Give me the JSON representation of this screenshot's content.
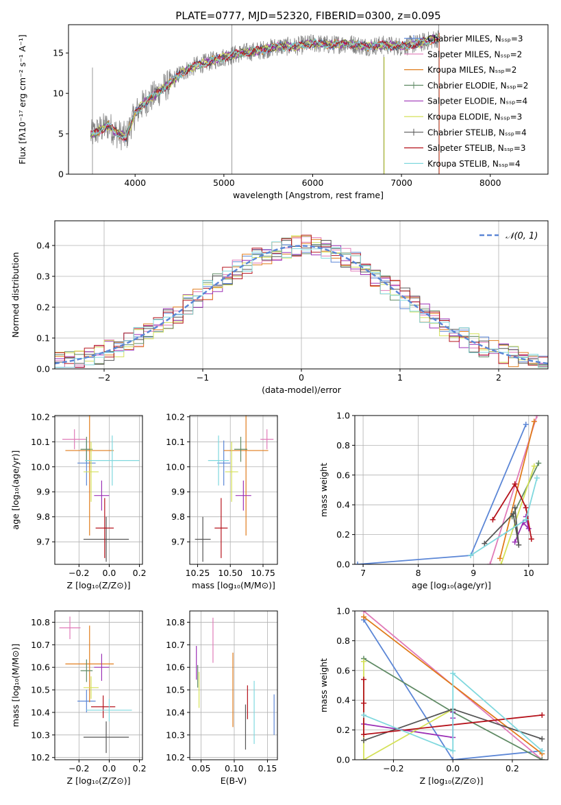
{
  "chart_data": [
    {
      "id": "spectrum",
      "type": "line",
      "title": "PLATE=0777, MJD=52320, FIBERID=0300, z=0.095",
      "xlabel": "wavelength [Angstrom, rest frame]",
      "ylabel": "Flux [fλ10⁻¹⁷ erg cm⁻² s⁻¹ A⁻¹]",
      "xlim": [
        3250,
        8650
      ],
      "ylim": [
        0,
        18.5
      ],
      "xticks": [
        4000,
        5000,
        6000,
        7000,
        8000
      ],
      "yticks": [
        0,
        5,
        10,
        15
      ],
      "grid": false,
      "legend_placement": "right",
      "data_series": {
        "name": "data",
        "color": "#808080"
      },
      "model_envelope": {
        "x": [
          3500,
          3600,
          3700,
          3800,
          3900,
          4000,
          4100,
          4200,
          4300,
          4400,
          4500,
          4600,
          4700,
          4800,
          5000,
          5200,
          5400,
          5600,
          5800,
          6000,
          6200,
          6400,
          6600,
          6800,
          7000,
          7200,
          7400
        ],
        "y": [
          4.8,
          5.5,
          6.0,
          5.0,
          4.6,
          7.5,
          8.8,
          9.6,
          10.5,
          11.3,
          12.4,
          13.0,
          13.5,
          13.8,
          14.5,
          15.0,
          15.3,
          15.8,
          15.8,
          16.2,
          16.0,
          16.2,
          15.8,
          16.0,
          15.8,
          16.2,
          16.8
        ]
      },
      "series": [
        {
          "name": "Chabrier MILES, N_SSP=3",
          "color": "#5b86d6"
        },
        {
          "name": "Salpeter MILES, N_SSP=2",
          "color": "#e07ab8"
        },
        {
          "name": "Kroupa MILES, N_SSP=2",
          "color": "#e07b1a"
        },
        {
          "name": "Chabrier ELODIE, N_SSP=2",
          "color": "#5f8a64"
        },
        {
          "name": "Salpeter ELODIE, N_SSP=4",
          "color": "#9b2fb5"
        },
        {
          "name": "Kroupa ELODIE, N_SSP=3",
          "color": "#d4e157"
        },
        {
          "name": "Chabrier STELIB, N_SSP=4",
          "color": "#555555"
        },
        {
          "name": "Salpeter STELIB, N_SSP=3",
          "color": "#b5121b"
        },
        {
          "name": "Kroupa STELIB, N_SSP=4",
          "color": "#7fd8de"
        }
      ]
    },
    {
      "id": "residuals",
      "type": "line",
      "xlabel": "(data-model)/error",
      "ylabel": "Normed distribution",
      "xlim": [
        -2.5,
        2.5
      ],
      "ylim": [
        0,
        0.48
      ],
      "xticks": [
        -2,
        -1,
        0,
        1,
        2
      ],
      "yticks": [
        0.0,
        0.1,
        0.2,
        0.3,
        0.4
      ],
      "grid": true,
      "legend_placement": "top-right",
      "reference_curve": {
        "name": "𝒩(0, 1)",
        "mean": 0,
        "sigma": 1,
        "color": "#5b86d6"
      }
    },
    {
      "id": "age_vs_Z",
      "type": "scatter",
      "xlabel": "Z [log₁₀(Z/Z⊙)]",
      "ylabel": "age  [log₁₀(age/yr)]",
      "xlim": [
        -0.36,
        0.22
      ],
      "ylim": [
        9.61,
        10.205
      ],
      "xticks": [
        -0.2,
        0.0,
        0.2
      ],
      "yticks": [
        9.7,
        9.8,
        9.9,
        10.0,
        10.1,
        10.2
      ],
      "grid": true,
      "points": [
        {
          "x": -0.15,
          "xerr": 0.06,
          "y": 10.015,
          "yerr": 0.09,
          "color": "#5b86d6"
        },
        {
          "x": -0.23,
          "xerr": 0.08,
          "y": 10.11,
          "yerr": 0.04,
          "color": "#e07ab8"
        },
        {
          "x": -0.13,
          "xerr": 0.16,
          "y": 10.065,
          "yerr": 0.34,
          "color": "#e07b1a"
        },
        {
          "x": -0.15,
          "xerr": 0.04,
          "y": 10.07,
          "yerr": 0.05,
          "color": "#5f8a64"
        },
        {
          "x": -0.05,
          "xerr": 0.05,
          "y": 9.885,
          "yerr": 0.06,
          "color": "#9b2fb5"
        },
        {
          "x": -0.12,
          "xerr": 0.05,
          "y": 9.98,
          "yerr": 0.12,
          "color": "#d4e157"
        },
        {
          "x": -0.02,
          "xerr": 0.15,
          "y": 9.71,
          "yerr": 0.09,
          "color": "#555555"
        },
        {
          "x": -0.03,
          "xerr": 0.06,
          "y": 9.755,
          "yerr": 0.12,
          "color": "#b5121b"
        },
        {
          "x": 0.02,
          "xerr": 0.18,
          "y": 10.025,
          "yerr": 0.1,
          "color": "#7fd8de"
        }
      ]
    },
    {
      "id": "age_vs_mass",
      "type": "scatter",
      "xlabel": "mass [log₁₀(M/M⊙)]",
      "xlim": [
        10.19,
        10.86
      ],
      "ylim": [
        9.61,
        10.205
      ],
      "xticks": [
        10.25,
        10.5,
        10.75
      ],
      "yticks": [
        9.7,
        9.8,
        9.9,
        10.0,
        10.1,
        10.2
      ],
      "grid": true,
      "points": [
        {
          "x": 10.45,
          "xerr": 0.05,
          "y": 10.015,
          "yerr": 0.09,
          "color": "#5b86d6"
        },
        {
          "x": 10.78,
          "xerr": 0.05,
          "y": 10.11,
          "yerr": 0.04,
          "color": "#e07ab8"
        },
        {
          "x": 10.62,
          "xerr": 0.17,
          "y": 10.065,
          "yerr": 0.34,
          "color": "#e07b1a"
        },
        {
          "x": 10.58,
          "xerr": 0.05,
          "y": 10.07,
          "yerr": 0.05,
          "color": "#5f8a64"
        },
        {
          "x": 10.6,
          "xerr": 0.06,
          "y": 9.885,
          "yerr": 0.06,
          "color": "#9b2fb5"
        },
        {
          "x": 10.51,
          "xerr": 0.05,
          "y": 9.98,
          "yerr": 0.12,
          "color": "#d4e157"
        },
        {
          "x": 10.29,
          "xerr": 0.06,
          "y": 9.71,
          "yerr": 0.09,
          "color": "#555555"
        },
        {
          "x": 10.43,
          "xerr": 0.05,
          "y": 9.755,
          "yerr": 0.12,
          "color": "#b5121b"
        },
        {
          "x": 10.41,
          "xerr": 0.08,
          "y": 10.025,
          "yerr": 0.1,
          "color": "#7fd8de"
        }
      ]
    },
    {
      "id": "weight_vs_age",
      "type": "line",
      "xlabel": "age  [log₁₀(age/yr)]",
      "ylabel": "mass weight",
      "xlim": [
        6.85,
        10.35
      ],
      "ylim": [
        0,
        1.0
      ],
      "xticks": [
        7,
        8,
        9,
        10
      ],
      "yticks": [
        0.0,
        0.2,
        0.4,
        0.6,
        0.8,
        1.0
      ],
      "grid": true,
      "series": [
        {
          "color": "#5b86d6",
          "x": [
            6.9,
            8.95,
            9.95
          ],
          "y": [
            0.0,
            0.06,
            0.94
          ]
        },
        {
          "color": "#e07ab8",
          "x": [
            9.3,
            10.15
          ],
          "y": [
            0.0,
            1.0
          ]
        },
        {
          "color": "#e07b1a",
          "x": [
            9.48,
            10.1
          ],
          "y": [
            0.04,
            0.96
          ]
        },
        {
          "color": "#5f8a64",
          "x": [
            9.7,
            10.18
          ],
          "y": [
            0.32,
            0.68
          ]
        },
        {
          "color": "#9b2fb5",
          "x": [
            9.95,
            10.0,
            9.9,
            9.75
          ],
          "y": [
            0.32,
            0.24,
            0.28,
            0.15
          ]
        },
        {
          "color": "#d4e157",
          "x": [
            9.5,
            10.1
          ],
          "y": [
            0.0,
            0.66
          ]
        },
        {
          "color": "#555555",
          "x": [
            9.2,
            9.72,
            9.82,
            9.75
          ],
          "y": [
            0.14,
            0.34,
            0.13,
            0.38
          ]
        },
        {
          "color": "#b5121b",
          "x": [
            9.35,
            9.75,
            9.95,
            10.05
          ],
          "y": [
            0.3,
            0.54,
            0.38,
            0.17
          ]
        },
        {
          "color": "#7fd8de",
          "x": [
            8.95,
            9.95,
            10.15
          ],
          "y": [
            0.06,
            0.3,
            0.58
          ]
        }
      ]
    },
    {
      "id": "mass_vs_Z",
      "type": "scatter",
      "xlabel": "Z [log₁₀(Z/Z⊙)]",
      "ylabel": "mass [log₁₀(M/M⊙)]",
      "xlim": [
        -0.36,
        0.22
      ],
      "ylim": [
        10.19,
        10.85
      ],
      "xticks": [
        -0.2,
        0.0,
        0.2
      ],
      "yticks": [
        10.2,
        10.3,
        10.4,
        10.5,
        10.6,
        10.7,
        10.8
      ],
      "grid": true,
      "points": [
        {
          "x": -0.15,
          "xerr": 0.06,
          "y": 10.45,
          "yerr": 0.05,
          "color": "#5b86d6"
        },
        {
          "x": -0.26,
          "xerr": 0.07,
          "y": 10.775,
          "yerr": 0.05,
          "color": "#e07ab8"
        },
        {
          "x": -0.13,
          "xerr": 0.16,
          "y": 10.615,
          "yerr": 0.17,
          "color": "#e07b1a"
        },
        {
          "x": -0.15,
          "xerr": 0.04,
          "y": 10.585,
          "yerr": 0.05,
          "color": "#5f8a64"
        },
        {
          "x": -0.05,
          "xerr": 0.05,
          "y": 10.6,
          "yerr": 0.06,
          "color": "#9b2fb5"
        },
        {
          "x": -0.12,
          "xerr": 0.05,
          "y": 10.51,
          "yerr": 0.05,
          "color": "#d4e157"
        },
        {
          "x": -0.02,
          "xerr": 0.15,
          "y": 10.29,
          "yerr": 0.07,
          "color": "#555555"
        },
        {
          "x": -0.04,
          "xerr": 0.08,
          "y": 10.425,
          "yerr": 0.05,
          "color": "#b5121b"
        },
        {
          "x": 0.0,
          "xerr": 0.15,
          "y": 10.41,
          "yerr": 0.05,
          "color": "#7fd8de"
        }
      ]
    },
    {
      "id": "mass_vs_ebv",
      "type": "scatter",
      "xlabel": "E(B-V)",
      "xlim": [
        0.033,
        0.165
      ],
      "ylim": [
        10.19,
        10.85
      ],
      "xticks": [
        0.05,
        0.1,
        0.15
      ],
      "yticks": [
        10.2,
        10.3,
        10.4,
        10.5,
        10.6,
        10.7,
        10.8
      ],
      "grid": true,
      "points": [
        {
          "x": 0.16,
          "y": 10.39,
          "yerr": 0.09,
          "color": "#5b86d6"
        },
        {
          "x": 0.068,
          "y": 10.72,
          "yerr": 0.1,
          "color": "#e07ab8"
        },
        {
          "x": 0.098,
          "y": 10.5,
          "yerr": 0.165,
          "color": "#e07b1a"
        },
        {
          "x": 0.045,
          "y": 10.56,
          "yerr": 0.05,
          "color": "#5f8a64"
        },
        {
          "x": 0.043,
          "y": 10.62,
          "yerr": 0.075,
          "color": "#9b2fb5"
        },
        {
          "x": 0.047,
          "y": 10.5,
          "yerr": 0.08,
          "color": "#d4e157"
        },
        {
          "x": 0.117,
          "y": 10.335,
          "yerr": 0.1,
          "color": "#555555"
        },
        {
          "x": 0.12,
          "y": 10.445,
          "yerr": 0.075,
          "color": "#b5121b"
        },
        {
          "x": 0.13,
          "y": 10.4,
          "yerr": 0.14,
          "color": "#7fd8de"
        }
      ]
    },
    {
      "id": "weight_vs_Z",
      "type": "line",
      "xlabel": "Z [log₁₀(Z/Z⊙)]",
      "ylabel": "mass weight",
      "xlim": [
        -0.33,
        0.32
      ],
      "ylim": [
        0,
        1.0
      ],
      "xticks": [
        -0.2,
        0.0,
        0.2
      ],
      "yticks": [
        0.0,
        0.2,
        0.4,
        0.6,
        0.8,
        1.0
      ],
      "grid": true,
      "series": [
        {
          "color": "#5b86d6",
          "x": [
            -0.3,
            0.0,
            0.3
          ],
          "y": [
            0.94,
            0.0,
            0.06
          ]
        },
        {
          "color": "#e07ab8",
          "x": [
            -0.3,
            0.3
          ],
          "y": [
            1.0,
            0.0
          ]
        },
        {
          "color": "#e07b1a",
          "x": [
            -0.3,
            0.3
          ],
          "y": [
            0.96,
            0.04
          ]
        },
        {
          "color": "#5f8a64",
          "x": [
            -0.3,
            0.0,
            0.3
          ],
          "y": [
            0.68,
            0.32,
            0.0
          ]
        },
        {
          "color": "#9b2fb5",
          "x": [
            -0.3,
            0.0,
            0.0,
            0.0
          ],
          "y": [
            0.24,
            0.15,
            0.28,
            0.32
          ]
        },
        {
          "color": "#d4e157",
          "x": [
            -0.3,
            -0.3,
            0.0
          ],
          "y": [
            0.66,
            0.0,
            0.34
          ]
        },
        {
          "color": "#555555",
          "x": [
            -0.3,
            0.0,
            0.3
          ],
          "y": [
            0.13,
            0.34,
            0.14
          ]
        },
        {
          "color": "#b5121b",
          "x": [
            -0.3,
            -0.3,
            -0.3,
            0.3
          ],
          "y": [
            0.54,
            0.38,
            0.17,
            0.3
          ]
        },
        {
          "color": "#7fd8de",
          "x": [
            -0.3,
            0.0,
            0.0,
            0.3
          ],
          "y": [
            0.3,
            0.06,
            0.58,
            0.06
          ]
        }
      ]
    }
  ]
}
